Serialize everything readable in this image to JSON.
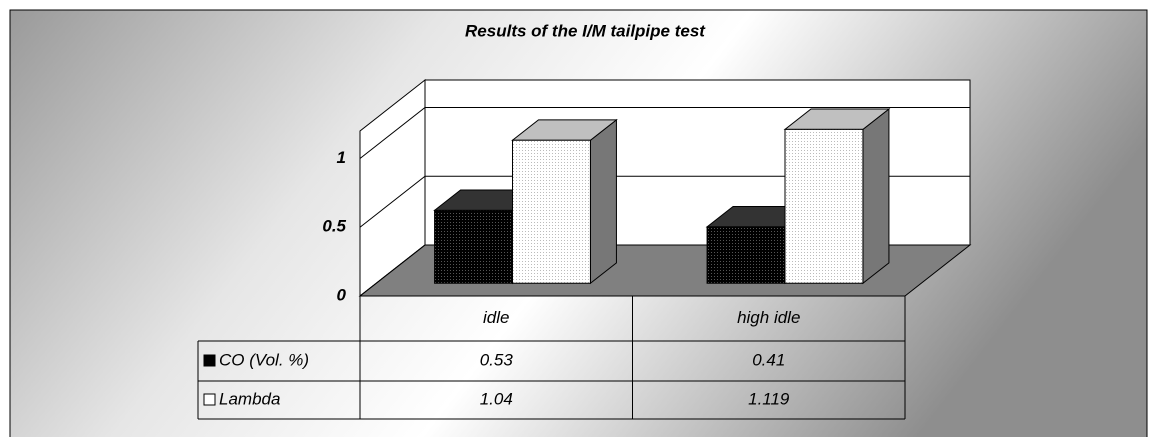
{
  "chart_data": {
    "type": "bar3d",
    "title": "Results of the I/M tailpipe test",
    "categories": [
      "idle",
      "high idle"
    ],
    "series": [
      {
        "name": "CO (Vol. %)",
        "color": "#000000",
        "values": [
          0.53,
          0.41
        ]
      },
      {
        "name": "Lambda",
        "color": "#ffffff",
        "values": [
          1.04,
          1.119
        ]
      }
    ],
    "ylim": [
      0,
      1.2
    ],
    "yticks": [
      0,
      0.5,
      1
    ],
    "grid": true,
    "data_table": true
  }
}
